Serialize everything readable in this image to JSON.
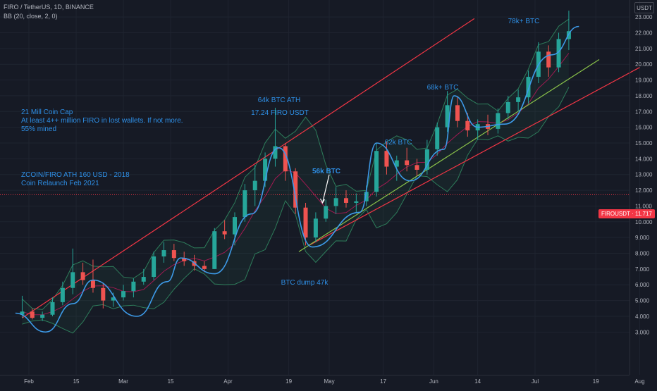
{
  "header": {
    "symbol_line": "FIRO / TetherUS, 1D, BINANCE",
    "indicator_line": "BB (20, close, 2, 0)",
    "currency": "USDT"
  },
  "price_tag": {
    "symbol": "FIROUSDT",
    "price": "11.717"
  },
  "colors": {
    "background": "#161a25",
    "grid": "#1f2430",
    "up_candle": "#26a69a",
    "down_candle": "#ef5350",
    "channel_line": "#f23645",
    "support_line": "#8bc34a",
    "drawn_curve": "#3d9ae8",
    "annotation_text": "#2e8fe6",
    "bb_basis": "#c2185b",
    "bb_band": "#2e7d5b"
  },
  "annotations": {
    "coin_cap": "21 Mill Coin Cap",
    "lost_wallets": "At least 4++ million FIRO in lost wallets. If not more.",
    "mined": "55% mined",
    "ath_2018": "ZCOIN/FIRO ATH 160 USD - 2018",
    "relaunch": "Coin Relaunch Feb 2021",
    "btc_ath": "64k BTC ATH",
    "firo_usdt": "17.24 FIRO USDT",
    "btc_56k": "56k BTC",
    "btc_62k": "62k BTC",
    "btc_68k": "68k+ BTC",
    "btc_78k": "78k+ BTC",
    "btc_dump": "BTC dump 47k"
  },
  "chart_data": {
    "type": "candlestick",
    "symbol": "FIRO / TetherUS",
    "interval": "1D",
    "exchange": "BINANCE",
    "x_tick_labels": [
      "Feb",
      "15",
      "Mar",
      "15",
      "Apr",
      "19",
      "May",
      "17",
      "Jun",
      "14",
      "Jul",
      "19",
      "Aug"
    ],
    "y_tick_labels": [
      "3.000",
      "4.000",
      "5.000",
      "6.000",
      "7.000",
      "8.000",
      "9.000",
      "10.000",
      "11.000",
      "12.000",
      "13.000",
      "14.000",
      "15.000",
      "16.000",
      "17.000",
      "18.000",
      "19.000",
      "20.000",
      "21.000",
      "22.000",
      "23.000"
    ],
    "ylim": [
      2.3,
      23.8
    ],
    "last_price": 11.717,
    "candles": [
      {
        "date": "2021-01-30",
        "o": 4.1,
        "h": 5.3,
        "l": 3.9,
        "c": 4.3
      },
      {
        "date": "2021-02-02",
        "o": 4.3,
        "h": 4.5,
        "l": 3.8,
        "c": 3.9
      },
      {
        "date": "2021-02-05",
        "o": 3.9,
        "h": 4.3,
        "l": 3.7,
        "c": 4.1
      },
      {
        "date": "2021-02-08",
        "o": 4.1,
        "h": 5.2,
        "l": 4.0,
        "c": 4.9
      },
      {
        "date": "2021-02-11",
        "o": 4.9,
        "h": 6.2,
        "l": 4.7,
        "c": 5.8
      },
      {
        "date": "2021-02-14",
        "o": 5.8,
        "h": 8.3,
        "l": 5.4,
        "c": 6.8
      },
      {
        "date": "2021-02-17",
        "o": 6.8,
        "h": 7.4,
        "l": 6.0,
        "c": 6.3
      },
      {
        "date": "2021-02-20",
        "o": 6.3,
        "h": 7.6,
        "l": 5.5,
        "c": 5.8
      },
      {
        "date": "2021-02-23",
        "o": 5.8,
        "h": 6.1,
        "l": 4.5,
        "c": 5.0
      },
      {
        "date": "2021-02-26",
        "o": 5.0,
        "h": 5.5,
        "l": 4.6,
        "c": 5.2
      },
      {
        "date": "2021-03-01",
        "o": 5.2,
        "h": 6.0,
        "l": 5.0,
        "c": 5.6
      },
      {
        "date": "2021-03-04",
        "o": 5.6,
        "h": 6.4,
        "l": 5.2,
        "c": 6.2
      },
      {
        "date": "2021-03-07",
        "o": 6.2,
        "h": 7.0,
        "l": 6.0,
        "c": 6.5
      },
      {
        "date": "2021-03-10",
        "o": 6.5,
        "h": 8.1,
        "l": 6.3,
        "c": 7.8
      },
      {
        "date": "2021-03-13",
        "o": 7.8,
        "h": 8.7,
        "l": 7.4,
        "c": 8.2
      },
      {
        "date": "2021-03-16",
        "o": 8.2,
        "h": 8.6,
        "l": 7.5,
        "c": 7.7
      },
      {
        "date": "2021-03-19",
        "o": 7.7,
        "h": 8.1,
        "l": 7.2,
        "c": 7.5
      },
      {
        "date": "2021-03-22",
        "o": 7.5,
        "h": 7.9,
        "l": 6.9,
        "c": 7.2
      },
      {
        "date": "2021-03-25",
        "o": 7.2,
        "h": 7.5,
        "l": 6.8,
        "c": 7.0
      },
      {
        "date": "2021-03-28",
        "o": 7.0,
        "h": 9.6,
        "l": 7.0,
        "c": 9.4
      },
      {
        "date": "2021-03-31",
        "o": 9.4,
        "h": 10.1,
        "l": 8.9,
        "c": 9.2
      },
      {
        "date": "2021-04-03",
        "o": 9.2,
        "h": 10.6,
        "l": 8.5,
        "c": 10.3
      },
      {
        "date": "2021-04-06",
        "o": 10.3,
        "h": 12.4,
        "l": 10.0,
        "c": 12.0
      },
      {
        "date": "2021-04-09",
        "o": 12.0,
        "h": 13.6,
        "l": 11.0,
        "c": 12.6
      },
      {
        "date": "2021-04-12",
        "o": 12.6,
        "h": 14.4,
        "l": 12.2,
        "c": 14.0
      },
      {
        "date": "2021-04-15",
        "o": 14.0,
        "h": 17.24,
        "l": 13.5,
        "c": 14.8
      },
      {
        "date": "2021-04-18",
        "o": 14.8,
        "h": 15.0,
        "l": 12.6,
        "c": 13.2
      },
      {
        "date": "2021-04-21",
        "o": 13.2,
        "h": 13.4,
        "l": 10.5,
        "c": 10.9
      },
      {
        "date": "2021-04-24",
        "o": 10.9,
        "h": 11.2,
        "l": 8.5,
        "c": 9.0
      },
      {
        "date": "2021-04-27",
        "o": 9.0,
        "h": 10.6,
        "l": 8.7,
        "c": 10.2
      },
      {
        "date": "2021-04-30",
        "o": 10.2,
        "h": 11.4,
        "l": 10.0,
        "c": 11.0
      },
      {
        "date": "2021-05-03",
        "o": 11.0,
        "h": 12.2,
        "l": 10.5,
        "c": 11.5
      },
      {
        "date": "2021-05-06",
        "o": 11.5,
        "h": 12.0,
        "l": 10.9,
        "c": 11.2
      },
      {
        "date": "2021-05-09",
        "o": 11.2,
        "h": 11.8,
        "l": 10.6,
        "c": 11.3
      },
      {
        "date": "2021-05-12",
        "o": 11.3,
        "h": 12.3,
        "l": 11.0,
        "c": 11.9
      },
      {
        "date": "2021-05-15",
        "o": 11.9,
        "h": 15.0,
        "l": 11.6,
        "c": 14.5
      },
      {
        "date": "2021-05-18",
        "o": 14.5,
        "h": 15.1,
        "l": 13.0,
        "c": 13.5
      },
      {
        "date": "2021-05-21",
        "o": 13.5,
        "h": 14.2,
        "l": 12.6,
        "c": 13.9
      },
      {
        "date": "2021-05-24",
        "o": 13.9,
        "h": 14.7,
        "l": 13.2,
        "c": 13.6
      },
      {
        "date": "2021-05-27",
        "o": 13.6,
        "h": 14.0,
        "l": 12.9,
        "c": 13.3
      },
      {
        "date": "2021-05-30",
        "o": 13.3,
        "h": 15.2,
        "l": 13.0,
        "c": 14.6
      },
      {
        "date": "2021-06-02",
        "o": 14.6,
        "h": 16.3,
        "l": 14.2,
        "c": 16.0
      },
      {
        "date": "2021-06-05",
        "o": 16.0,
        "h": 18.3,
        "l": 15.7,
        "c": 17.4
      },
      {
        "date": "2021-06-08",
        "o": 17.4,
        "h": 17.9,
        "l": 16.0,
        "c": 16.4
      },
      {
        "date": "2021-06-11",
        "o": 16.4,
        "h": 16.9,
        "l": 15.4,
        "c": 15.8
      },
      {
        "date": "2021-06-14",
        "o": 15.8,
        "h": 16.5,
        "l": 15.2,
        "c": 16.2
      },
      {
        "date": "2021-06-17",
        "o": 16.2,
        "h": 16.8,
        "l": 15.5,
        "c": 15.9
      },
      {
        "date": "2021-06-20",
        "o": 15.9,
        "h": 17.2,
        "l": 15.6,
        "c": 16.9
      },
      {
        "date": "2021-06-23",
        "o": 16.9,
        "h": 18.0,
        "l": 16.5,
        "c": 17.6
      },
      {
        "date": "2021-06-26",
        "o": 17.6,
        "h": 18.4,
        "l": 17.0,
        "c": 17.9
      },
      {
        "date": "2021-06-29",
        "o": 17.9,
        "h": 19.6,
        "l": 17.5,
        "c": 19.2
      },
      {
        "date": "2021-07-02",
        "o": 19.2,
        "h": 21.4,
        "l": 18.8,
        "c": 20.8
      },
      {
        "date": "2021-07-05",
        "o": 20.8,
        "h": 21.2,
        "l": 19.2,
        "c": 19.8
      },
      {
        "date": "2021-07-08",
        "o": 19.8,
        "h": 22.0,
        "l": 19.5,
        "c": 21.6
      },
      {
        "date": "2021-07-11",
        "o": 21.6,
        "h": 23.4,
        "l": 20.9,
        "c": 22.1
      }
    ]
  }
}
